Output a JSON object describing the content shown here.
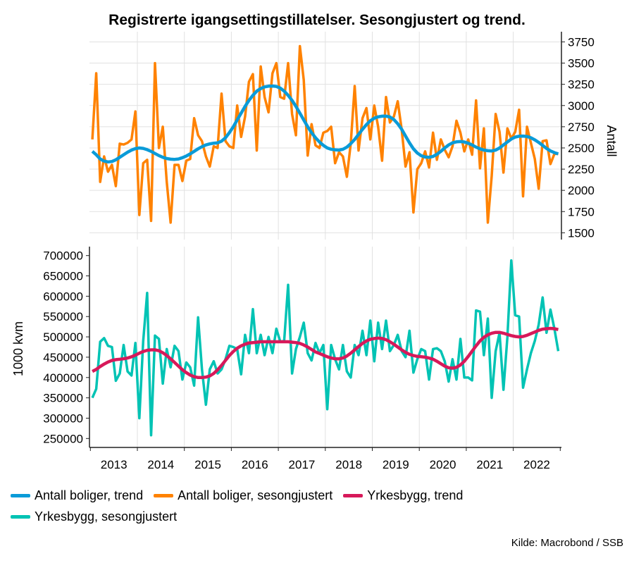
{
  "chart_data": [
    {
      "type": "line",
      "title": "Registrerte igangsettingstillatelser. Sesongjustert og trend.",
      "ylabel": "Antall",
      "y_axis_side": "right",
      "ylim": [
        1420,
        3870
      ],
      "yticks": [
        1500,
        1750,
        2000,
        2250,
        2500,
        2750,
        3000,
        3250,
        3500,
        3750
      ],
      "grid": true,
      "x_frequency": "monthly",
      "x_start": "2013-01",
      "x_end": "2022-12",
      "series": [
        {
          "name": "Antall boliger, trend",
          "color": "#0a9bd8",
          "values": [
            2460,
            2420,
            2370,
            2345,
            2335,
            2340,
            2360,
            2390,
            2420,
            2450,
            2475,
            2492,
            2500,
            2495,
            2480,
            2460,
            2435,
            2410,
            2390,
            2375,
            2368,
            2365,
            2370,
            2385,
            2405,
            2430,
            2460,
            2490,
            2515,
            2535,
            2548,
            2556,
            2560,
            2580,
            2620,
            2680,
            2750,
            2830,
            2910,
            2990,
            3060,
            3120,
            3170,
            3200,
            3220,
            3228,
            3230,
            3225,
            3205,
            3170,
            3120,
            3060,
            2990,
            2910,
            2830,
            2750,
            2680,
            2620,
            2570,
            2530,
            2500,
            2485,
            2478,
            2475,
            2485,
            2510,
            2550,
            2600,
            2660,
            2720,
            2775,
            2820,
            2850,
            2867,
            2874,
            2875,
            2865,
            2835,
            2785,
            2720,
            2640,
            2560,
            2490,
            2440,
            2408,
            2393,
            2390,
            2400,
            2425,
            2460,
            2500,
            2535,
            2560,
            2572,
            2575,
            2570,
            2555,
            2535,
            2510,
            2490,
            2475,
            2467,
            2465,
            2475,
            2500,
            2535,
            2570,
            2605,
            2628,
            2638,
            2640,
            2635,
            2620,
            2595,
            2565,
            2530,
            2495,
            2465,
            2445,
            2430
          ]
        },
        {
          "name": "Antall boliger, sesongjustert",
          "color": "#ff8200",
          "values": [
            2600,
            3380,
            2100,
            2400,
            2220,
            2300,
            2050,
            2550,
            2540,
            2560,
            2600,
            2930,
            1710,
            2320,
            2360,
            1640,
            3500,
            2500,
            2750,
            2100,
            1620,
            2300,
            2300,
            2110,
            2350,
            2370,
            2850,
            2650,
            2580,
            2400,
            2280,
            2520,
            2500,
            3140,
            2580,
            2520,
            2500,
            3000,
            2630,
            2870,
            3280,
            3370,
            2470,
            3460,
            3100,
            2920,
            3380,
            3500,
            3100,
            3080,
            3500,
            2900,
            2650,
            3700,
            3300,
            2410,
            2780,
            2530,
            2500,
            2680,
            2700,
            2750,
            2320,
            2450,
            2400,
            2160,
            2550,
            3230,
            2470,
            2850,
            2970,
            2600,
            3000,
            2750,
            2350,
            3100,
            2800,
            2870,
            3050,
            2720,
            2280,
            2450,
            1740,
            2250,
            2320,
            2460,
            2270,
            2680,
            2360,
            2600,
            2480,
            2390,
            2520,
            2820,
            2680,
            2460,
            2600,
            2420,
            3060,
            2260,
            2730,
            1620,
            2170,
            2900,
            2690,
            2210,
            2730,
            2610,
            2690,
            2950,
            1930,
            2750,
            2560,
            2370,
            2020,
            2580,
            2590,
            2310,
            2430,
            2430
          ]
        }
      ]
    },
    {
      "type": "line",
      "ylabel": "1000 kvm",
      "y_axis_side": "left",
      "ylim": [
        228000,
        722000
      ],
      "yticks": [
        250000,
        300000,
        350000,
        400000,
        450000,
        500000,
        550000,
        600000,
        650000,
        700000
      ],
      "xticks": [
        "2013",
        "2014",
        "2015",
        "2016",
        "2017",
        "2018",
        "2019",
        "2020",
        "2021",
        "2022"
      ],
      "grid": true,
      "x_frequency": "monthly",
      "x_start": "2013-01",
      "x_end": "2022-12",
      "series": [
        {
          "name": "Yrkesbygg, trend",
          "color": "#d7195a",
          "values": [
            415000,
            420000,
            427000,
            433000,
            438000,
            442000,
            444000,
            445000,
            446000,
            448000,
            451000,
            455000,
            460000,
            464000,
            467000,
            468000,
            468000,
            466000,
            461000,
            454000,
            446000,
            437000,
            428000,
            419000,
            412000,
            406000,
            402000,
            400000,
            400000,
            401000,
            404000,
            410000,
            419000,
            430000,
            442000,
            454000,
            464000,
            472000,
            478000,
            482000,
            485000,
            486000,
            487000,
            488000,
            488000,
            488000,
            488000,
            488000,
            488000,
            488000,
            488000,
            487000,
            486000,
            484000,
            480000,
            475000,
            469000,
            463000,
            459000,
            455000,
            451000,
            448000,
            446000,
            446000,
            448000,
            453000,
            460000,
            468000,
            476000,
            484000,
            490000,
            494000,
            496000,
            497000,
            496000,
            493000,
            488000,
            482000,
            475000,
            468000,
            462000,
            457000,
            454000,
            452000,
            451000,
            450000,
            448000,
            445000,
            440000,
            434000,
            428000,
            424000,
            423000,
            425000,
            431000,
            440000,
            452000,
            465000,
            478000,
            490000,
            499000,
            505000,
            509000,
            511000,
            511000,
            509000,
            506000,
            503000,
            501000,
            500000,
            501000,
            504000,
            508000,
            512000,
            516000,
            519000,
            520000,
            521000,
            520000,
            518000
          ]
        },
        {
          "name": "Yrkesbygg, sesongjustert",
          "color": "#00c3b4",
          "values": [
            350000,
            372000,
            488000,
            497000,
            478000,
            475000,
            392000,
            410000,
            480000,
            415000,
            405000,
            485000,
            300000,
            490000,
            608000,
            258000,
            503000,
            495000,
            385000,
            470000,
            425000,
            478000,
            465000,
            395000,
            437000,
            425000,
            380000,
            548000,
            420000,
            333000,
            420000,
            440000,
            410000,
            420000,
            445000,
            478000,
            475000,
            470000,
            408000,
            505000,
            460000,
            568000,
            460000,
            505000,
            455000,
            500000,
            460000,
            520000,
            488000,
            490000,
            628000,
            410000,
            470000,
            500000,
            535000,
            460000,
            442000,
            485000,
            460000,
            480000,
            322000,
            480000,
            445000,
            420000,
            480000,
            415000,
            400000,
            480000,
            455000,
            515000,
            455000,
            540000,
            440000,
            535000,
            470000,
            540000,
            465000,
            480000,
            505000,
            465000,
            450000,
            515000,
            412000,
            445000,
            470000,
            465000,
            395000,
            470000,
            472000,
            465000,
            440000,
            390000,
            445000,
            395000,
            495000,
            400000,
            400000,
            393000,
            565000,
            562000,
            455000,
            545000,
            350000,
            465000,
            510000,
            370000,
            500000,
            688000,
            553000,
            550000,
            375000,
            420000,
            460000,
            490000,
            530000,
            597000,
            510000,
            567000,
            520000,
            465000
          ]
        }
      ]
    }
  ],
  "legend": [
    {
      "label": "Antall boliger, trend",
      "color": "#0a9bd8"
    },
    {
      "label": "Antall boliger, sesongjustert",
      "color": "#ff8200"
    },
    {
      "label": "Yrkesbygg, trend",
      "color": "#d7195a"
    },
    {
      "label": "Yrkesbygg, sesongjustert",
      "color": "#00c3b4"
    }
  ],
  "source": "Kilde: Macrobond / SSB"
}
